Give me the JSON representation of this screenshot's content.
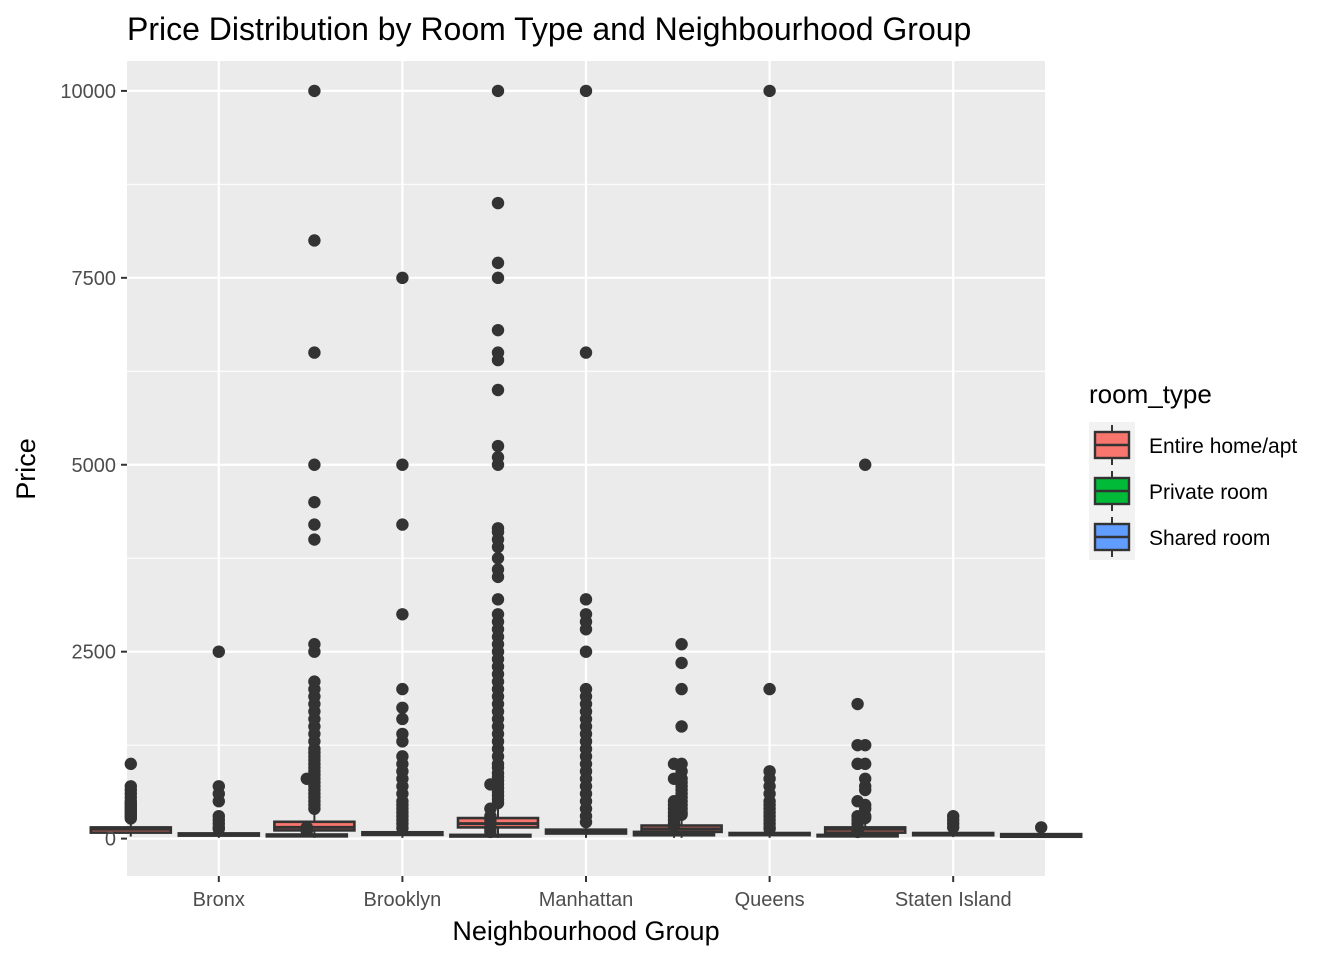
{
  "chart_data": {
    "type": "boxplot",
    "title": "Price Distribution by Room Type and Neighbourhood Group",
    "xlabel": "Neighbourhood Group",
    "ylabel": "Price",
    "ylim": [
      -500,
      10400
    ],
    "yticks": [
      0,
      2500,
      5000,
      7500,
      10000
    ],
    "grid": true,
    "legend": {
      "title": "room_type",
      "position": "right"
    },
    "categories": [
      "Bronx",
      "Brooklyn",
      "Manhattan",
      "Queens",
      "Staten Island"
    ],
    "series": [
      {
        "name": "Entire home/apt",
        "color": "#F8766D",
        "boxes": [
          {
            "q1": 80,
            "median": 125,
            "q3": 150,
            "whisker_low": 28,
            "whisker_high": 255,
            "outliers": [
              270,
              300,
              325,
              350,
              375,
              400,
              425,
              450,
              475,
              500,
              550,
              600,
              650,
              700,
              1000
            ]
          },
          {
            "q1": 110,
            "median": 150,
            "q3": 225,
            "whisker_low": 10,
            "whisker_high": 390,
            "outliers": [
              400,
              450,
              500,
              550,
              600,
              650,
              700,
              750,
              800,
              850,
              900,
              950,
              1000,
              1050,
              1100,
              1150,
              1200,
              1300,
              1400,
              1500,
              1600,
              1700,
              1800,
              1900,
              2000,
              2100,
              2500,
              2600,
              4000,
              4200,
              4500,
              5000,
              6500,
              8000,
              10000
            ]
          },
          {
            "q1": 150,
            "median": 200,
            "q3": 275,
            "whisker_low": 10,
            "whisker_high": 460,
            "outliers": [
              475,
              525,
              575,
              625,
              675,
              725,
              775,
              825,
              875,
              950,
              1000,
              1100,
              1200,
              1300,
              1400,
              1500,
              1600,
              1700,
              1800,
              1900,
              2000,
              2100,
              2200,
              2300,
              2400,
              2500,
              2600,
              2700,
              2800,
              2900,
              3000,
              3200,
              3500,
              3600,
              3750,
              3900,
              4000,
              4100,
              4150,
              5000,
              5100,
              5250,
              6000,
              6400,
              6500,
              6800,
              7500,
              7700,
              8500,
              10000
            ]
          },
          {
            "q1": 90,
            "median": 130,
            "q3": 175,
            "whisker_low": 10,
            "whisker_high": 300,
            "outliers": [
              320,
              350,
              400,
              450,
              500,
              550,
              600,
              650,
              700,
              750,
              800,
              900,
              1000,
              1500,
              2000,
              2350,
              2600
            ]
          },
          {
            "q1": 80,
            "median": 125,
            "q3": 150,
            "whisker_low": 48,
            "whisker_high": 250,
            "outliers": [
              275,
              300,
              400,
              450,
              650,
              700,
              800,
              1000,
              1250,
              5000
            ]
          }
        ]
      },
      {
        "name": "Private room",
        "color": "#00BA38",
        "boxes": [
          {
            "q1": 40,
            "median": 55,
            "q3": 70,
            "whisker_low": 10,
            "whisker_high": 120,
            "outliers": [
              130,
              150,
              200,
              250,
              300,
              500,
              600,
              700,
              2500
            ]
          },
          {
            "q1": 50,
            "median": 65,
            "q3": 85,
            "whisker_low": 10,
            "whisker_high": 135,
            "outliers": [
              140,
              200,
              250,
              300,
              350,
              400,
              450,
              500,
              600,
              700,
              800,
              900,
              1000,
              1100,
              1300,
              1400,
              1600,
              1750,
              2000,
              3000,
              4200,
              5000,
              7500
            ]
          },
          {
            "q1": 68,
            "median": 90,
            "q3": 120,
            "whisker_low": 10,
            "whisker_high": 200,
            "outliers": [
              220,
              300,
              400,
              500,
              600,
              700,
              800,
              900,
              1000,
              1100,
              1200,
              1300,
              1400,
              1500,
              1600,
              1700,
              1800,
              1900,
              2000,
              2500,
              2800,
              2900,
              3000,
              3200,
              6500,
              10000
            ]
          },
          {
            "q1": 47,
            "median": 60,
            "q3": 75,
            "whisker_low": 10,
            "whisker_high": 115,
            "outliers": [
              130,
              150,
              200,
              250,
              300,
              350,
              400,
              450,
              500,
              600,
              700,
              800,
              900,
              2000,
              10000
            ]
          },
          {
            "q1": 45,
            "median": 60,
            "q3": 75,
            "whisker_low": 20,
            "whisker_high": 110,
            "outliers": [
              150,
              200,
              250,
              300
            ]
          }
        ]
      },
      {
        "name": "Shared room",
        "color": "#619CFF",
        "boxes": [
          {
            "q1": 30,
            "median": 40,
            "q3": 55,
            "whisker_low": 20,
            "whisker_high": 80,
            "outliers": [
              100,
              125,
              150,
              800
            ]
          },
          {
            "q1": 28,
            "median": 36,
            "q3": 50,
            "whisker_low": 10,
            "whisker_high": 85,
            "outliers": [
              90,
              120,
              150,
              200,
              250,
              300,
              400,
              725
            ]
          },
          {
            "q1": 45,
            "median": 70,
            "q3": 90,
            "whisker_low": 10,
            "whisker_high": 155,
            "outliers": [
              175,
              200,
              250,
              300,
              350,
              400,
              450,
              500,
              800,
              1000
            ]
          },
          {
            "q1": 30,
            "median": 37,
            "q3": 50,
            "whisker_low": 11,
            "whisker_high": 80,
            "outliers": [
              90,
              100,
              150,
              200,
              250,
              300,
              500,
              1000,
              1250,
              1800
            ]
          },
          {
            "q1": 25,
            "median": 30,
            "q3": 60,
            "whisker_low": 13,
            "whisker_high": 99,
            "outliers": [
              150
            ]
          }
        ]
      }
    ]
  }
}
